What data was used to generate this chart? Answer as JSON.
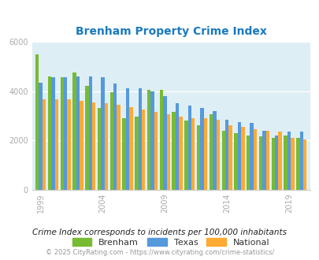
{
  "title": "Brenham Property Crime Index",
  "title_color": "#1a7abf",
  "years": [
    1999,
    2000,
    2001,
    2002,
    2003,
    2004,
    2005,
    2006,
    2007,
    2008,
    2009,
    2010,
    2011,
    2012,
    2013,
    2014,
    2015,
    2016,
    2017,
    2018,
    2019,
    2020
  ],
  "brenham": [
    5480,
    4600,
    4550,
    4750,
    4200,
    3300,
    3950,
    2900,
    2950,
    4050,
    4050,
    3150,
    2800,
    2600,
    3050,
    2400,
    2300,
    2200,
    2150,
    2100,
    2200,
    2100
  ],
  "texas": [
    4350,
    4550,
    4550,
    4600,
    4600,
    4550,
    4300,
    4100,
    4100,
    4000,
    3800,
    3500,
    3400,
    3300,
    3200,
    2850,
    2750,
    2700,
    2400,
    2200,
    2350,
    2350
  ],
  "national": [
    3650,
    3650,
    3650,
    3600,
    3550,
    3500,
    3450,
    3350,
    3250,
    3150,
    3050,
    2950,
    2900,
    2900,
    2850,
    2600,
    2550,
    2450,
    2400,
    2350,
    2100,
    2050
  ],
  "brenham_color": "#77bb33",
  "texas_color": "#5599dd",
  "national_color": "#ffaa33",
  "bg_color": "#deeef5",
  "ylim": [
    0,
    6000
  ],
  "yticks": [
    0,
    2000,
    4000,
    6000
  ],
  "xtick_years": [
    1999,
    2004,
    2009,
    2014,
    2019
  ],
  "tick_color": "#aaaaaa",
  "legend_labels": [
    "Brenham",
    "Texas",
    "National"
  ],
  "footnote": "Crime Index corresponds to incidents per 100,000 inhabitants",
  "copyright": "© 2025 CityRating.com - https://www.cityrating.com/crime-statistics/",
  "footnote_color": "#222222",
  "copyright_color": "#999999",
  "bar_width": 0.28
}
